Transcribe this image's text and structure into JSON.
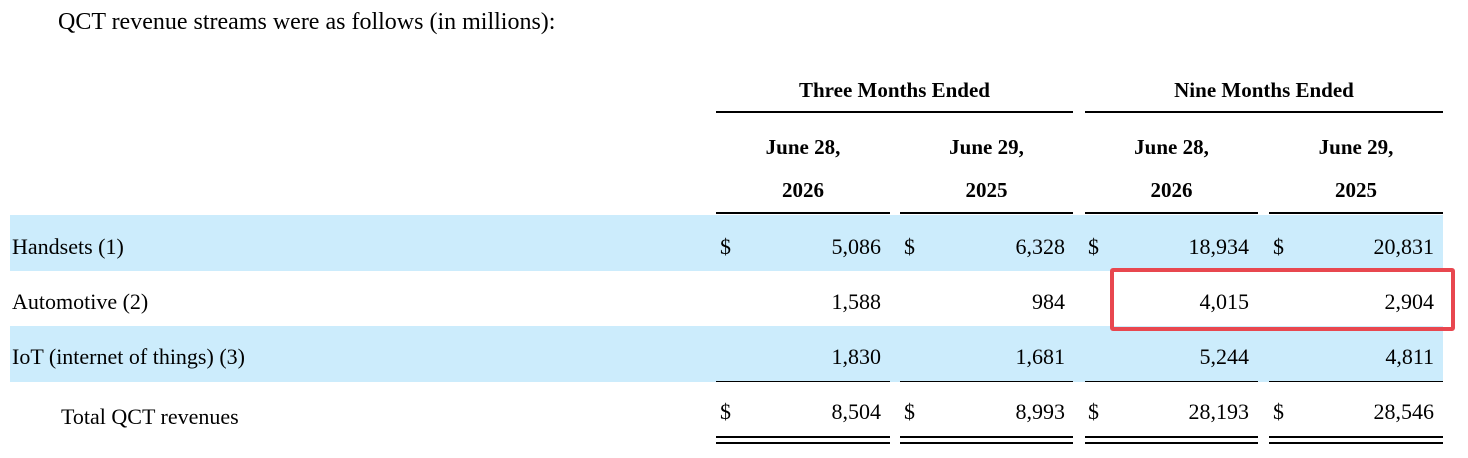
{
  "intro_text": "QCT revenue streams were as follows (in millions):",
  "headers": {
    "group_three_months": "Three Months Ended",
    "group_nine_months": "Nine Months Ended",
    "columns": [
      {
        "line1": "June 28,",
        "line2": "2026"
      },
      {
        "line1": "June 29,",
        "line2": "2025"
      },
      {
        "line1": "June 28,",
        "line2": "2026"
      },
      {
        "line1": "June 29,",
        "line2": "2025"
      }
    ]
  },
  "rows": [
    {
      "label": "Handsets (1)",
      "values": [
        "5,086",
        "6,328",
        "18,934",
        "20,831"
      ],
      "currency": "$",
      "shaded": true
    },
    {
      "label": "Automotive (2)",
      "values": [
        "1,588",
        "984",
        "4,015",
        "2,904"
      ],
      "currency": "",
      "shaded": false
    },
    {
      "label": "IoT (internet of things) (3)",
      "values": [
        "1,830",
        "1,681",
        "5,244",
        "4,811"
      ],
      "currency": "",
      "shaded": true
    },
    {
      "label": "Total QCT revenues",
      "values": [
        "8,504",
        "8,993",
        "28,193",
        "28,546"
      ],
      "currency": "$",
      "shaded": false
    }
  ],
  "colors": {
    "row_shade": "#ccecfc",
    "highlight_border": "#e8474f"
  },
  "highlight": {
    "row": "Automotive (2)",
    "columns": [
      "Nine Months Ended June 28, 2026",
      "Nine Months Ended June 29, 2025"
    ]
  }
}
